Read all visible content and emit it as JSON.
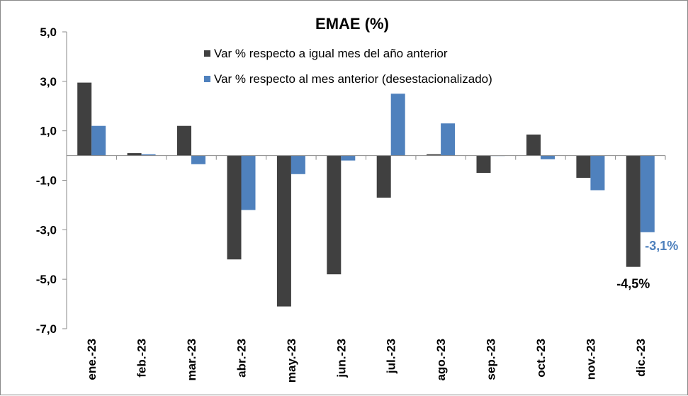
{
  "colors": {
    "series1": "#404040",
    "series2": "#4f81bd",
    "axis": "#8a8a8a"
  },
  "chart_data": {
    "type": "bar",
    "title": "EMAE (%)",
    "xlabel": "",
    "ylabel": "",
    "ylim": [
      -7,
      5
    ],
    "yticks": [
      5,
      3,
      1,
      -1,
      -3,
      -5,
      -7
    ],
    "ytick_labels": [
      "5,0",
      "3,0",
      "1,0",
      "-1,0",
      "-3,0",
      "-5,0",
      "-7,0"
    ],
    "grid": false,
    "legend_position": "top",
    "categories": [
      "ene.-23",
      "feb.-23",
      "mar.-23",
      "abr.-23",
      "may.-23",
      "jun.-23",
      "jul.-23",
      "ago.-23",
      "sep.-23",
      "oct.-23",
      "nov.-23",
      "dic.-23"
    ],
    "series": [
      {
        "name": "Var % respecto a igual mes del año anterior",
        "color": "#404040",
        "values": [
          2.95,
          0.1,
          1.2,
          -4.2,
          -6.1,
          -4.8,
          -1.7,
          0.05,
          -0.7,
          0.85,
          -0.9,
          -4.5
        ]
      },
      {
        "name": "Var % respecto al mes anterior (desestacionalizado)",
        "color": "#4f81bd",
        "values": [
          1.2,
          0.05,
          -0.35,
          -2.2,
          -0.75,
          -0.2,
          2.5,
          1.3,
          0.0,
          -0.15,
          -1.4,
          -3.1
        ]
      }
    ],
    "annotations": [
      {
        "text": "-3,1%",
        "series": 1,
        "category": 11,
        "color": "#4f81bd"
      },
      {
        "text": "-4,5%",
        "series": 0,
        "category": 11,
        "color": "#000000"
      }
    ]
  }
}
